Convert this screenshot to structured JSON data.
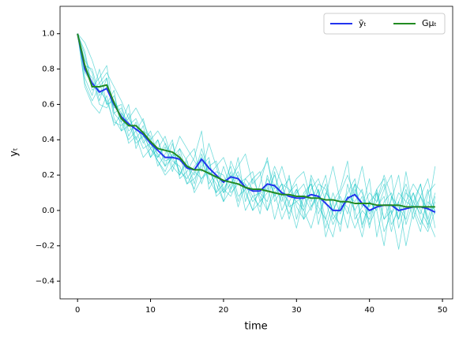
{
  "chart_data": {
    "type": "line",
    "xlabel": "time",
    "ylabel": "yₜ",
    "x": [
      0,
      1,
      2,
      3,
      4,
      5,
      6,
      7,
      8,
      9,
      10,
      11,
      12,
      13,
      14,
      15,
      16,
      17,
      18,
      19,
      20,
      21,
      22,
      23,
      24,
      25,
      26,
      27,
      28,
      29,
      30,
      31,
      32,
      33,
      34,
      35,
      36,
      37,
      38,
      39,
      40,
      41,
      42,
      43,
      44,
      45,
      46,
      47,
      48,
      49
    ],
    "xlim": [
      -2.4,
      51.4
    ],
    "xticks": [
      0,
      10,
      20,
      30,
      40,
      50
    ],
    "ylim": [
      -0.5,
      1.155
    ],
    "yticks": [
      {
        "value": -0.4,
        "label": "−0.4"
      },
      {
        "value": -0.2,
        "label": "−0.2"
      },
      {
        "value": 0,
        "label": "0.0"
      },
      0.2,
      0.4,
      0.6,
      0.8,
      {
        "value": 1,
        "label": "1.0"
      }
    ],
    "legend": "upper right",
    "sample_color": "#00bfbf",
    "samples": [
      [
        1.0,
        0.85,
        0.78,
        0.62,
        0.75,
        0.55,
        0.58,
        0.42,
        0.5,
        0.38,
        0.45,
        0.3,
        0.36,
        0.22,
        0.35,
        0.28,
        0.15,
        0.32,
        0.2,
        0.25,
        0.1,
        0.22,
        0.05,
        0.18,
        0.12,
        -0.02,
        0.2,
        0.08,
        0.15,
        -0.05,
        0.12,
        0.02,
        0.18,
        -0.08,
        0.1,
        0.05,
        -0.12,
        0.15,
        0.0,
        0.08,
        -0.1,
        0.12,
        -0.05,
        0.06,
        0.2,
        -0.08,
        0.05,
        0.15,
        -0.1,
        0.08
      ],
      [
        1.0,
        0.75,
        0.65,
        0.8,
        0.6,
        0.68,
        0.45,
        0.55,
        0.4,
        0.48,
        0.3,
        0.4,
        0.25,
        0.38,
        0.2,
        0.3,
        0.35,
        0.15,
        0.28,
        0.1,
        0.25,
        0.12,
        0.3,
        0.05,
        0.18,
        0.22,
        0.0,
        0.15,
        0.05,
        0.2,
        -0.05,
        0.1,
        0.15,
        -0.02,
        0.08,
        0.25,
        0.05,
        -0.1,
        0.12,
        0.02,
        0.18,
        -0.15,
        0.05,
        0.1,
        -0.05,
        0.22,
        0.0,
        -0.12,
        0.1,
        0.15
      ],
      [
        1.0,
        0.9,
        0.7,
        0.75,
        0.82,
        0.55,
        0.5,
        0.6,
        0.35,
        0.45,
        0.42,
        0.25,
        0.32,
        0.4,
        0.18,
        0.22,
        0.3,
        0.45,
        0.12,
        0.2,
        0.05,
        0.28,
        0.18,
        0.1,
        0.0,
        0.15,
        0.3,
        0.05,
        0.12,
        0.18,
        0.02,
        -0.05,
        0.2,
        0.1,
        -0.1,
        0.05,
        0.12,
        0.28,
        -0.05,
        0.02,
        0.1,
        0.05,
        0.15,
        -0.08,
        0.0,
        0.12,
        -0.05,
        0.08,
        0.18,
        -0.02
      ],
      [
        1.0,
        0.7,
        0.6,
        0.55,
        0.65,
        0.48,
        0.55,
        0.38,
        0.42,
        0.3,
        0.35,
        0.28,
        0.2,
        0.25,
        0.32,
        0.15,
        0.18,
        0.25,
        0.3,
        0.08,
        0.12,
        0.2,
        0.02,
        0.15,
        0.08,
        0.1,
        0.05,
        0.22,
        0.0,
        0.1,
        0.15,
        -0.05,
        0.02,
        0.12,
        -0.15,
        0.0,
        0.08,
        -0.02,
        0.15,
        -0.1,
        0.05,
        0.0,
        -0.2,
        0.08,
        0.02,
        -0.05,
        0.1,
        0.0,
        -0.08,
        0.05
      ],
      [
        1.0,
        0.95,
        0.85,
        0.72,
        0.78,
        0.7,
        0.62,
        0.52,
        0.58,
        0.5,
        0.4,
        0.45,
        0.38,
        0.3,
        0.42,
        0.35,
        0.28,
        0.22,
        0.38,
        0.25,
        0.3,
        0.18,
        0.25,
        0.32,
        0.15,
        0.2,
        0.28,
        0.12,
        0.25,
        0.1,
        0.18,
        0.22,
        0.05,
        0.15,
        0.12,
        0.0,
        0.1,
        0.2,
        0.08,
        0.25,
        0.02,
        0.12,
        0.18,
        -0.02,
        0.1,
        0.05,
        0.15,
        0.08,
        0.0,
        0.25
      ],
      [
        1.0,
        0.8,
        0.75,
        0.6,
        0.58,
        0.65,
        0.5,
        0.4,
        0.45,
        0.52,
        0.35,
        0.3,
        0.38,
        0.25,
        0.2,
        0.28,
        0.1,
        0.18,
        0.22,
        0.15,
        0.05,
        0.12,
        0.2,
        0.0,
        0.08,
        0.02,
        0.15,
        -0.05,
        0.1,
        0.05,
        -0.1,
        0.08,
        0.0,
        0.12,
        -0.05,
        -0.15,
        0.05,
        0.02,
        -0.1,
        0.0,
        -0.05,
        0.1,
        -0.12,
        -0.02,
        0.05,
        -0.2,
        0.0,
        0.08,
        -0.05,
        -0.15
      ],
      [
        1.0,
        0.88,
        0.68,
        0.72,
        0.6,
        0.62,
        0.55,
        0.5,
        0.38,
        0.42,
        0.35,
        0.4,
        0.28,
        0.3,
        0.22,
        0.18,
        0.25,
        0.3,
        0.15,
        0.22,
        0.2,
        0.1,
        0.15,
        0.18,
        0.22,
        0.05,
        0.1,
        0.2,
        0.08,
        -0.02,
        0.1,
        0.15,
        0.02,
        0.08,
        0.2,
        -0.05,
        0.02,
        0.1,
        0.18,
        -0.08,
        0.05,
        0.0,
        0.12,
        0.2,
        -0.1,
        0.05,
        0.02,
        0.15,
        -0.05,
        0.1
      ],
      [
        1.0,
        0.78,
        0.72,
        0.68,
        0.62,
        0.5,
        0.48,
        0.52,
        0.45,
        0.35,
        0.38,
        0.32,
        0.25,
        0.3,
        0.35,
        0.2,
        0.12,
        0.28,
        0.18,
        0.1,
        0.15,
        0.25,
        0.08,
        0.12,
        0.0,
        0.05,
        0.18,
        0.1,
        -0.05,
        0.05,
        0.12,
        0.0,
        -0.1,
        0.05,
        0.15,
        -0.02,
        -0.08,
        0.08,
        0.0,
        -0.15,
        0.05,
        0.1,
        -0.05,
        0.0,
        -0.22,
        0.02,
        0.1,
        -0.05,
        -0.12,
        0.0
      ],
      [
        1.0,
        0.82,
        0.8,
        0.65,
        0.7,
        0.58,
        0.6,
        0.45,
        0.48,
        0.4,
        0.3,
        0.35,
        0.42,
        0.28,
        0.25,
        0.15,
        0.22,
        0.18,
        0.25,
        0.28,
        0.12,
        0.08,
        0.18,
        0.15,
        0.05,
        0.1,
        0.12,
        0.25,
        0.15,
        0.02,
        0.05,
        0.0,
        0.12,
        0.18,
        0.05,
        -0.08,
        0.02,
        0.05,
        0.15,
        0.1,
        -0.02,
        0.05,
        0.2,
        0.08,
        -0.05,
        0.1,
        0.05,
        -0.02,
        0.12,
        -0.1
      ],
      [
        1.0,
        0.72,
        0.62,
        0.7,
        0.75,
        0.52,
        0.45,
        0.48,
        0.52,
        0.42,
        0.38,
        0.28,
        0.22,
        0.32,
        0.28,
        0.25,
        0.2,
        0.35,
        0.22,
        0.18,
        0.1,
        0.15,
        0.22,
        0.12,
        0.18,
        0.08,
        0.0,
        0.1,
        0.15,
        0.12,
        0.05,
        0.08,
        0.15,
        0.02,
        -0.05,
        0.1,
        -0.02,
        0.08,
        0.05,
        0.12,
        -0.08,
        0.02,
        0.08,
        -0.12,
        0.05,
        0.15,
        0.02,
        -0.08,
        0.05,
        0.0
      ]
    ],
    "series": [
      {
        "name": "ȳₜ",
        "color": "#2233ee",
        "values": [
          1.0,
          0.8,
          0.72,
          0.67,
          0.69,
          0.6,
          0.53,
          0.49,
          0.46,
          0.43,
          0.38,
          0.34,
          0.3,
          0.3,
          0.29,
          0.24,
          0.23,
          0.29,
          0.24,
          0.2,
          0.16,
          0.19,
          0.18,
          0.13,
          0.11,
          0.11,
          0.15,
          0.14,
          0.1,
          0.08,
          0.07,
          0.07,
          0.09,
          0.08,
          0.04,
          0.0,
          0.0,
          0.07,
          0.09,
          0.04,
          0.0,
          0.02,
          0.03,
          0.03,
          0.0,
          0.01,
          0.02,
          0.02,
          0.01,
          -0.01
        ]
      },
      {
        "name": "Gμₜ",
        "color": "#228b22",
        "values": [
          1.0,
          0.82,
          0.7,
          0.7,
          0.71,
          0.61,
          0.52,
          0.48,
          0.48,
          0.44,
          0.39,
          0.35,
          0.34,
          0.33,
          0.3,
          0.25,
          0.23,
          0.23,
          0.21,
          0.19,
          0.17,
          0.16,
          0.15,
          0.13,
          0.12,
          0.12,
          0.11,
          0.1,
          0.09,
          0.09,
          0.08,
          0.08,
          0.07,
          0.07,
          0.06,
          0.06,
          0.05,
          0.05,
          0.04,
          0.04,
          0.04,
          0.03,
          0.03,
          0.03,
          0.03,
          0.02,
          0.02,
          0.02,
          0.02,
          0.02
        ]
      }
    ]
  }
}
